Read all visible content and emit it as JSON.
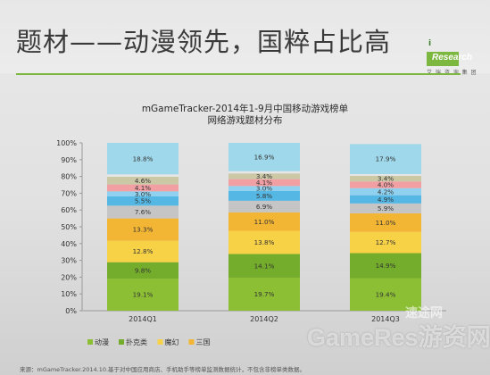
{
  "slide": {
    "title": "题材——动漫领先，国粹占比高",
    "logo": {
      "mark": "i",
      "name": "Research",
      "sub": "艾 瑞 咨 询 集 团"
    },
    "source": "来源：mGameTracker.2014.10.基于对中国应用商店、手机助手等榜单监测数据统计，不包含非榜单类数据。",
    "watermark": "GameRes游资网",
    "watermark_top": "速途网"
  },
  "chart_data": {
    "type": "bar",
    "stacked": true,
    "title": "mGameTracker-2014年1-9月中国移动游戏榜单",
    "subtitle": "网络游戏题材分布",
    "categories": [
      "2014Q1",
      "2014Q2",
      "2014Q3"
    ],
    "ylim": [
      0,
      100
    ],
    "yticks": [
      "0%",
      "10%",
      "20%",
      "30%",
      "40%",
      "50%",
      "60%",
      "70%",
      "80%",
      "90%",
      "100%"
    ],
    "grid": false,
    "legend_position": "bottom",
    "series": [
      {
        "name": "动漫",
        "color": "#8dbf35",
        "values": [
          19.1,
          19.7,
          19.4
        ],
        "labels": [
          "19.1%",
          "19.7%",
          "19.4%"
        ]
      },
      {
        "name": "扑克类",
        "color": "#74ad2b",
        "values": [
          9.8,
          14.1,
          14.9
        ],
        "labels": [
          "9.8%",
          "14.1%",
          "14.9%"
        ]
      },
      {
        "name": "魔幻",
        "color": "#f7d247",
        "values": [
          12.8,
          13.8,
          12.7
        ],
        "labels": [
          "12.8%",
          "13.8%",
          "12.7%"
        ]
      },
      {
        "name": "三国",
        "color": "#f3b534",
        "values": [
          13.3,
          11.0,
          11.0
        ],
        "labels": [
          "13.3%",
          "11.0%",
          "11.0%"
        ]
      },
      {
        "name": "",
        "color": "#c5c5c5",
        "values": [
          7.6,
          6.9,
          5.9
        ],
        "labels": [
          "7.6%",
          "6.9%",
          "5.9%"
        ]
      },
      {
        "name": "",
        "color": "#55b7e3",
        "values": [
          5.5,
          5.8,
          4.9
        ],
        "labels": [
          "5.5%",
          "5.8%",
          "4.9%"
        ]
      },
      {
        "name": "",
        "color": "#8fd1ee",
        "values": [
          3.0,
          3.0,
          4.2
        ],
        "labels": [
          "3.0%",
          "3.0%",
          "4.2%"
        ]
      },
      {
        "name": "",
        "color": "#f29fa4",
        "values": [
          4.1,
          4.1,
          4.0
        ],
        "labels": [
          "4.1%",
          "4.1%",
          "4.0%"
        ]
      },
      {
        "name": "",
        "color": "#cbc8a6",
        "values": [
          4.6,
          3.4,
          3.4
        ],
        "labels": [
          "4.6%",
          "3.4%",
          "3.4%"
        ]
      },
      {
        "name": "",
        "color": "#e7e7e7",
        "values": [
          1.4,
          1.3,
          1.0
        ],
        "labels": [
          "",
          "",
          ""
        ]
      },
      {
        "name": "",
        "color": "#9fd8ea",
        "values": [
          18.8,
          16.9,
          17.9
        ],
        "labels": [
          "18.8%",
          "16.9%",
          "17.9%"
        ]
      }
    ]
  }
}
